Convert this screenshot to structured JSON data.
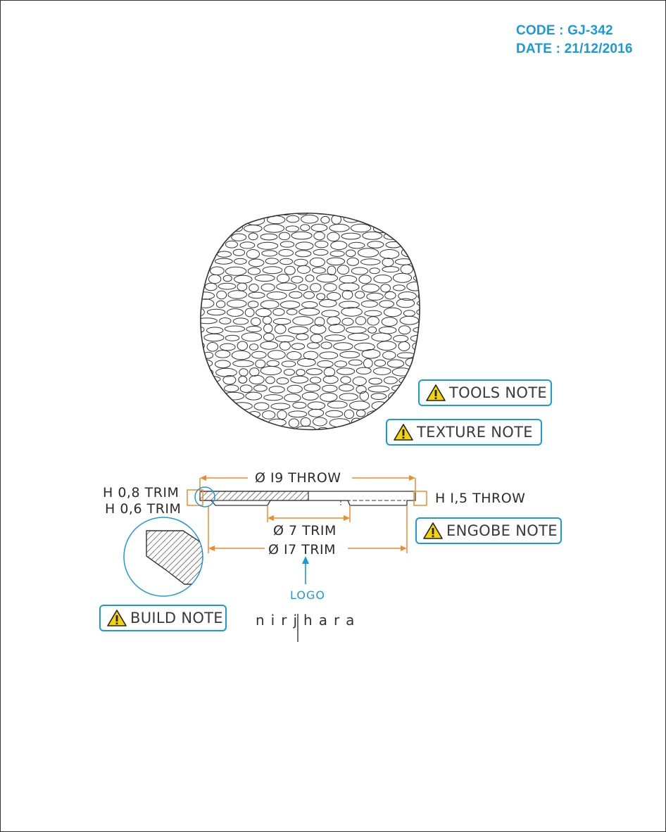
{
  "header": {
    "code": "CODE : GJ-342",
    "date": "DATE : 21/12/2016"
  },
  "notes": {
    "tools": "TOOLS NOTE",
    "texture": "TEXTURE NOTE",
    "engobe": "ENGOBE NOTE",
    "build": "BUILD NOTE"
  },
  "dimensions": {
    "throw_diameter": "Ø I9 THROW",
    "h_trim_outer": "H 0,8 TRIM",
    "h_trim_inner": "H 0,6 TRIM",
    "h_throw": "H I,5 THROW",
    "foot_diameter": "Ø 7 TRIM",
    "trim_diameter": "Ø I7 TRIM"
  },
  "logo": {
    "caption": "LOGO",
    "brand": "nirjhara"
  },
  "colors": {
    "accent_blue": "#1a9ad6",
    "dimension_orange": "#f08a2c",
    "warning_yellow": "#f5d20a",
    "line_dark": "#333333"
  },
  "icons": {
    "warning": "warning-triangle-icon",
    "arrow": "arrow-up-icon"
  }
}
